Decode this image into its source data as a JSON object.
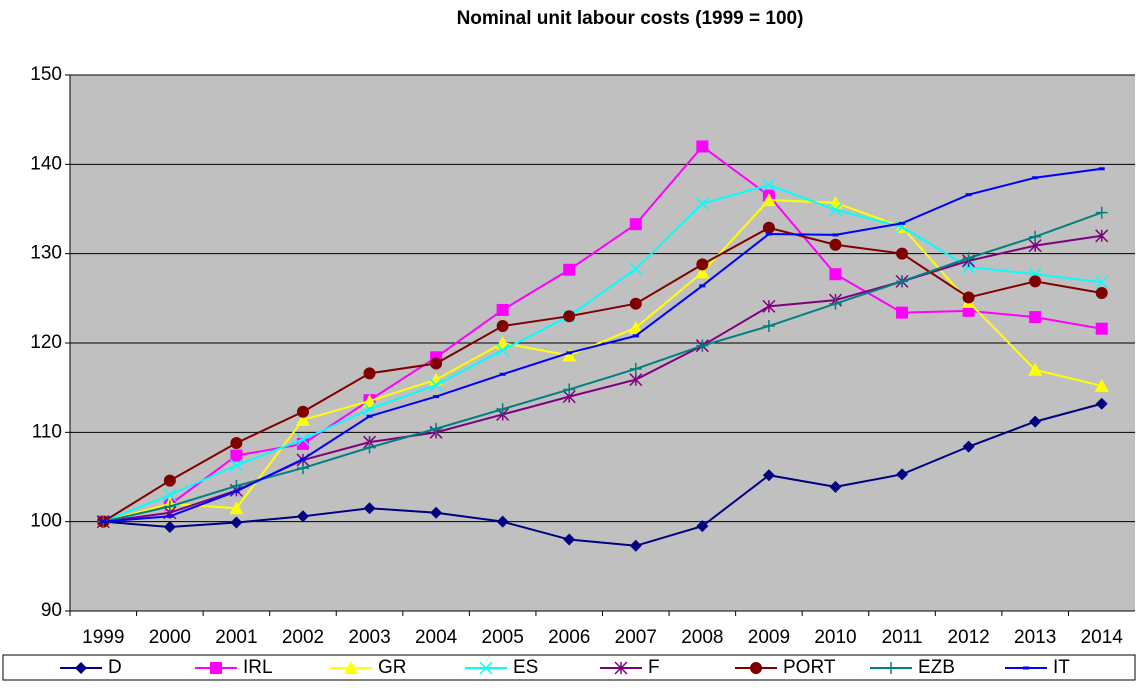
{
  "chart_data": {
    "type": "line",
    "title": "Nominal unit labour costs (1999 = 100)",
    "categories": [
      "1999",
      "2000",
      "2001",
      "2002",
      "2003",
      "2004",
      "2005",
      "2006",
      "2007",
      "2008",
      "2009",
      "2010",
      "2011",
      "2012",
      "2013",
      "2014"
    ],
    "ylim": [
      90,
      150
    ],
    "yticks": [
      90,
      100,
      110,
      120,
      130,
      140,
      150
    ],
    "grid": true,
    "legend": "bottom",
    "series": [
      {
        "name": "D",
        "color": "#000080",
        "marker": "diamond",
        "values": [
          100,
          99.4,
          99.9,
          100.6,
          101.5,
          101,
          100,
          98,
          97.3,
          99.5,
          105.2,
          103.9,
          105.3,
          108.4,
          111.2,
          113.2
        ]
      },
      {
        "name": "IRL",
        "color": "#ff00ff",
        "marker": "square",
        "values": [
          100,
          101.9,
          107.4,
          108.7,
          113.6,
          118.4,
          123.7,
          128.2,
          133.3,
          142,
          136.5,
          127.7,
          123.4,
          123.6,
          122.9,
          121.6
        ]
      },
      {
        "name": "GR",
        "color": "#ffff00",
        "marker": "triangle",
        "values": [
          100,
          102,
          101.5,
          111.4,
          113.5,
          115.9,
          120,
          118.6,
          121.7,
          127.9,
          136,
          135.7,
          133,
          124.6,
          117,
          115.2
        ]
      },
      {
        "name": "ES",
        "color": "#00ffff",
        "marker": "x",
        "values": [
          100,
          103,
          106.3,
          109.2,
          112.6,
          115.3,
          119.2,
          123,
          128.3,
          135.6,
          137.7,
          134.9,
          133,
          128.5,
          127.7,
          126.8
        ]
      },
      {
        "name": "F",
        "color": "#800080",
        "marker": "star",
        "values": [
          100,
          101,
          103.5,
          106.9,
          108.9,
          110,
          112,
          114,
          115.9,
          119.7,
          124.1,
          124.8,
          126.9,
          129.2,
          130.9,
          132
        ]
      },
      {
        "name": "PORT",
        "color": "#800000",
        "marker": "circle",
        "values": [
          100,
          104.6,
          108.8,
          112.3,
          116.6,
          117.7,
          121.9,
          123,
          124.4,
          128.8,
          132.9,
          131,
          130,
          125.1,
          126.9,
          125.6
        ]
      },
      {
        "name": "EZB",
        "color": "#008080",
        "marker": "plus",
        "values": [
          100,
          101.7,
          104,
          106,
          108.3,
          110.4,
          112.6,
          114.8,
          117.1,
          119.7,
          121.9,
          124.4,
          126.9,
          129.5,
          131.9,
          134.6
        ]
      },
      {
        "name": "IT",
        "color": "#0000ff",
        "marker": "dash",
        "values": [
          100,
          100.6,
          103.4,
          107,
          111.8,
          114,
          116.5,
          118.9,
          120.8,
          126.4,
          132.2,
          132.1,
          133.4,
          136.6,
          138.5,
          139.5
        ]
      }
    ]
  }
}
